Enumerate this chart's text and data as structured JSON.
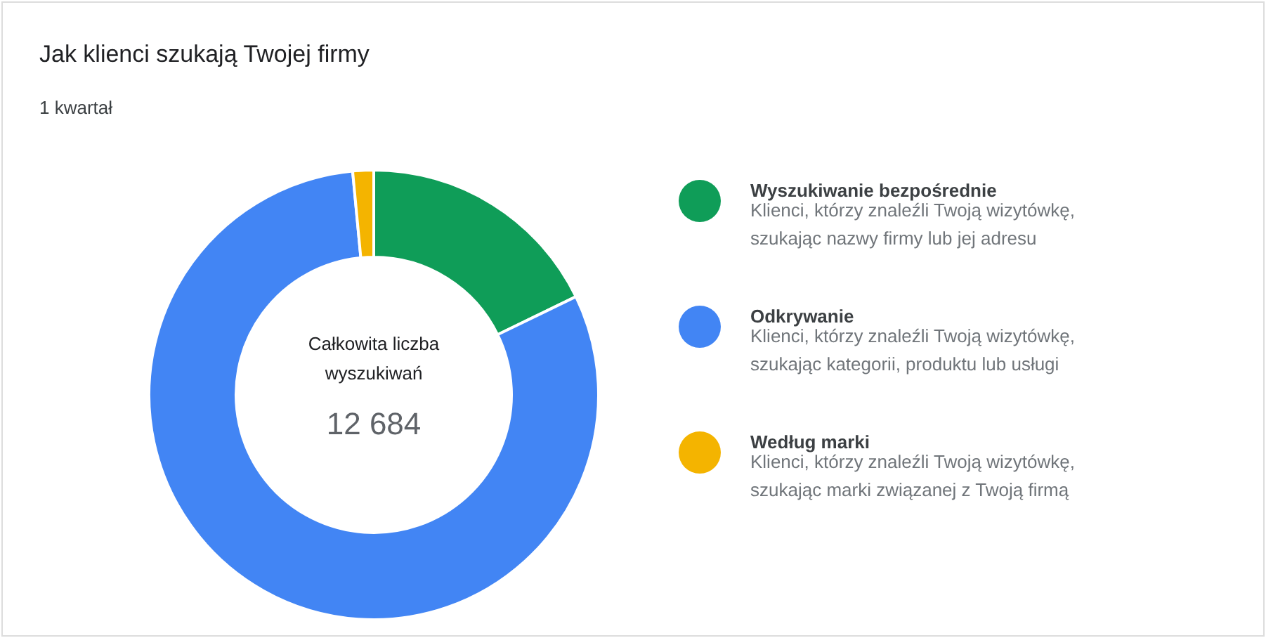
{
  "chart_data": {
    "type": "donut",
    "title": "Jak klienci szukają Twojej firmy",
    "subtitle": "1 kwartał",
    "categories": [
      "Wyszukiwanie bezpośrednie",
      "Odkrywanie",
      "Według marki"
    ],
    "values": [
      17.8,
      80.7,
      1.5
    ],
    "colors": [
      "#0f9d58",
      "#4285f4",
      "#f4b400"
    ],
    "legend": "right",
    "annotations": [
      "Całkowita liczba\nwyszukiwań",
      "12 684",
      "Klienci, którzy znaleźli Twoją wizytówkę,\nszukając nazwy firmy lub jej adresu",
      "Klienci, którzy znaleźli Twoją wizytówkę,\nszukając kategorii, produktu lub usługi",
      "Klienci, którzy znaleźli Twoją wizytówkę,\nszukając marki związanej z Twoją firmą"
    ]
  }
}
